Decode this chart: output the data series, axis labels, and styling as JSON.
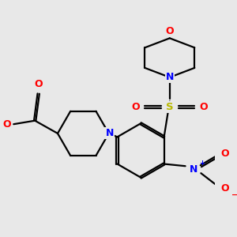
{
  "background_color": "#e8e8e8",
  "bond_color": "#000000",
  "atom_colors": {
    "O": "#ff0000",
    "N": "#0000ff",
    "S": "#b8b800",
    "C": "#000000"
  },
  "figsize": [
    3.0,
    3.0
  ],
  "dpi": 100,
  "lw": 1.6,
  "double_sep": 0.013
}
